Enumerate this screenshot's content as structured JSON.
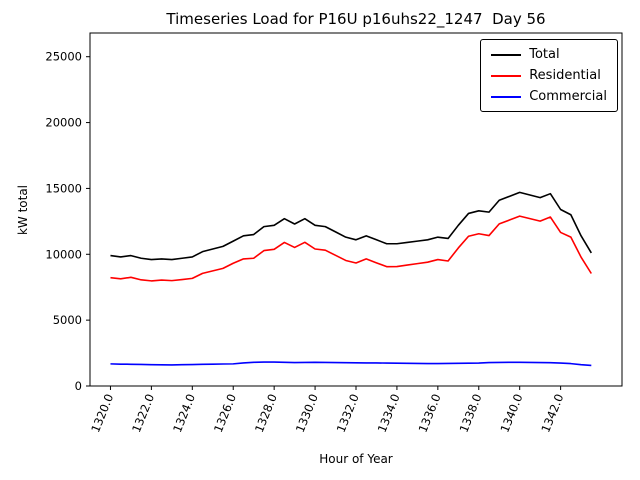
{
  "chart_data": {
    "type": "line",
    "title": "Timeseries Load for P16U p16uhs22_1247  Day 56",
    "xlabel": "Hour of Year",
    "ylabel": "kW total",
    "xlim": [
      1319.0,
      1345.0
    ],
    "ylim": [
      0,
      26800
    ],
    "grid": false,
    "legend_position": "upper right",
    "xtick_values": [
      1320,
      1322,
      1324,
      1326,
      1328,
      1330,
      1332,
      1334,
      1336,
      1338,
      1340,
      1342
    ],
    "xtick_labels": [
      "1320.0",
      "1322.0",
      "1324.0",
      "1326.0",
      "1328.0",
      "1330.0",
      "1332.0",
      "1334.0",
      "1336.0",
      "1338.0",
      "1340.0",
      "1342.0"
    ],
    "ytick_values": [
      0,
      5000,
      10000,
      15000,
      20000,
      25000
    ],
    "ytick_labels": [
      "0",
      "5000",
      "10000",
      "15000",
      "20000",
      "25000"
    ],
    "x": [
      1320.0,
      1320.5,
      1321.0,
      1321.5,
      1322.0,
      1322.5,
      1323.0,
      1323.5,
      1324.0,
      1324.5,
      1325.0,
      1325.5,
      1326.0,
      1326.5,
      1327.0,
      1327.5,
      1328.0,
      1328.5,
      1329.0,
      1329.5,
      1330.0,
      1330.5,
      1331.0,
      1331.5,
      1332.0,
      1332.5,
      1333.0,
      1333.5,
      1334.0,
      1334.5,
      1335.0,
      1335.5,
      1336.0,
      1336.5,
      1337.0,
      1337.5,
      1338.0,
      1338.5,
      1339.0,
      1339.5,
      1340.0,
      1340.5,
      1341.0,
      1341.5,
      1342.0,
      1342.5,
      1343.0,
      1343.5
    ],
    "series": [
      {
        "name": "Total",
        "color": "#000000",
        "values": [
          9900,
          9800,
          9900,
          9700,
          9600,
          9650,
          9600,
          9700,
          9800,
          10200,
          10400,
          10600,
          11000,
          11400,
          11500,
          12100,
          12200,
          12700,
          12300,
          12700,
          12200,
          12100,
          11700,
          11300,
          11100,
          11400,
          11100,
          10800,
          10800,
          10900,
          11000,
          11100,
          11300,
          11200,
          12200,
          13100,
          13300,
          13200,
          14100,
          14400,
          14700,
          14500,
          14300,
          14600,
          13400,
          13000,
          11400,
          10100
        ]
      },
      {
        "name": "Residential",
        "color": "#ff0000",
        "values": [
          8220,
          8140,
          8250,
          8060,
          7980,
          8040,
          8000,
          8080,
          8170,
          8550,
          8740,
          8930,
          9320,
          9650,
          9700,
          10280,
          10380,
          10900,
          10520,
          10910,
          10400,
          10310,
          9920,
          9530,
          9340,
          9650,
          9350,
          9060,
          9070,
          9180,
          9290,
          9400,
          9600,
          9490,
          10480,
          11370,
          11560,
          11420,
          12310,
          12600,
          12900,
          12710,
          12520,
          12830,
          11660,
          11300,
          9780,
          8540
        ]
      },
      {
        "name": "Commercial",
        "color": "#0000ff",
        "values": [
          1680,
          1660,
          1650,
          1640,
          1620,
          1610,
          1600,
          1620,
          1630,
          1650,
          1660,
          1670,
          1680,
          1750,
          1800,
          1820,
          1820,
          1800,
          1780,
          1790,
          1800,
          1790,
          1780,
          1770,
          1760,
          1750,
          1750,
          1740,
          1730,
          1720,
          1710,
          1700,
          1700,
          1710,
          1720,
          1730,
          1740,
          1780,
          1790,
          1800,
          1800,
          1790,
          1780,
          1770,
          1740,
          1700,
          1620,
          1560
        ]
      }
    ]
  }
}
